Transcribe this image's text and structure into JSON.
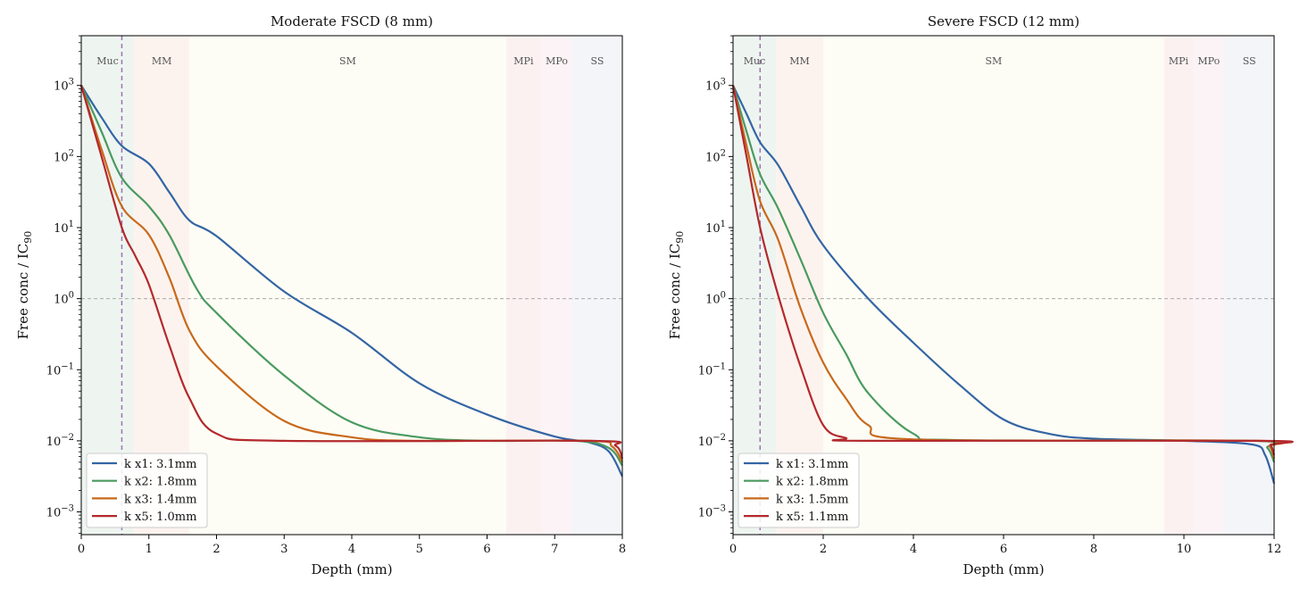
{
  "chart_data": [
    {
      "type": "line",
      "title": "Moderate FSCD (8 mm)",
      "xlabel": "Depth (mm)",
      "ylabel": "Free conc / IC",
      "ylabel_sub": "90",
      "yscale": "log",
      "xlim": [
        0,
        8
      ],
      "ylim_log10": [
        -3.32,
        3.7
      ],
      "xticks": [
        0,
        1,
        2,
        3,
        4,
        5,
        6,
        7,
        8
      ],
      "yticks_log10": [
        -3,
        -2,
        -1,
        0,
        1,
        2,
        3
      ],
      "threshold_y": 1,
      "marker_x": 0.6,
      "legend_position": "lower-left",
      "layers": [
        {
          "label": "Muc",
          "from": 0,
          "to": 0.78,
          "color": "#eef5f1"
        },
        {
          "label": "MM",
          "from": 0.78,
          "to": 1.6,
          "color": "#fdf3ee"
        },
        {
          "label": "SM",
          "from": 1.6,
          "to": 6.28,
          "color": "#fdfdf5"
        },
        {
          "label": "MPi",
          "from": 6.28,
          "to": 6.8,
          "color": "#fcf1f1"
        },
        {
          "label": "MPo",
          "from": 6.8,
          "to": 7.26,
          "color": "#fbf3f5"
        },
        {
          "label": "SS",
          "from": 7.26,
          "to": 8,
          "color": "#f3f5f9"
        }
      ],
      "series": [
        {
          "name": "k x1: 3.1mm",
          "color": "#3465a4",
          "x": [
            0,
            0.3,
            0.6,
            1.0,
            1.3,
            1.6,
            2,
            3,
            4,
            5,
            6,
            7,
            7.5,
            7.8,
            8
          ],
          "log10_y": [
            3,
            2.55,
            2.15,
            1.9,
            1.5,
            1.1,
            0.88,
            0.1,
            -0.48,
            -1.19,
            -1.63,
            -1.94,
            -2.02,
            -2.15,
            -2.5
          ]
        },
        {
          "name": "k x2: 1.8mm",
          "color": "#4a9a5f",
          "x": [
            0,
            0.3,
            0.6,
            1.0,
            1.3,
            1.7,
            2,
            3,
            4,
            5,
            6,
            7.3,
            7.8,
            8
          ],
          "log10_y": [
            3,
            2.35,
            1.7,
            1.3,
            0.9,
            0.15,
            -0.2,
            -1.08,
            -1.74,
            -1.95,
            -2,
            -2,
            -2.1,
            -2.35
          ]
        },
        {
          "name": "k x3: 1.4mm",
          "color": "#c8691c",
          "x": [
            0,
            0.3,
            0.6,
            1.0,
            1.3,
            1.6,
            2,
            3,
            4,
            5,
            7.5,
            7.85,
            8
          ],
          "log10_y": [
            3,
            2.1,
            1.3,
            0.9,
            0.3,
            -0.45,
            -0.95,
            -1.72,
            -1.95,
            -2,
            -2,
            -2.08,
            -2.3
          ]
        },
        {
          "name": "k x5: 1.0mm",
          "color": "#b3292c",
          "x": [
            0,
            0.3,
            0.6,
            0.8,
            1.0,
            1.3,
            1.6,
            2,
            3,
            7.5,
            7.9,
            8
          ],
          "log10_y": [
            3,
            2.0,
            1.0,
            0.6,
            0.2,
            -0.65,
            -1.4,
            -1.9,
            -2,
            -2,
            -2.07,
            -2.25
          ]
        }
      ]
    },
    {
      "type": "line",
      "title": "Severe FSCD (12 mm)",
      "xlabel": "Depth (mm)",
      "ylabel": "Free conc / IC",
      "ylabel_sub": "90",
      "yscale": "log",
      "xlim": [
        0,
        12
      ],
      "ylim_log10": [
        -3.32,
        3.7
      ],
      "xticks": [
        0,
        2,
        4,
        6,
        8,
        10,
        12
      ],
      "yticks_log10": [
        -3,
        -2,
        -1,
        0,
        1,
        2,
        3
      ],
      "threshold_y": 1,
      "marker_x": 0.6,
      "legend_position": "lower-left",
      "layers": [
        {
          "label": "Muc",
          "from": 0,
          "to": 0.95,
          "color": "#eef5f1"
        },
        {
          "label": "MM",
          "from": 0.95,
          "to": 2.0,
          "color": "#fdf3ee"
        },
        {
          "label": "SM",
          "from": 2.0,
          "to": 9.56,
          "color": "#fdfdf5"
        },
        {
          "label": "MPi",
          "from": 9.56,
          "to": 10.2,
          "color": "#fcf1f1"
        },
        {
          "label": "MPo",
          "from": 10.2,
          "to": 10.9,
          "color": "#fbf3f5"
        },
        {
          "label": "SS",
          "from": 10.9,
          "to": 12,
          "color": "#f3f5f9"
        }
      ],
      "series": [
        {
          "name": "k x1: 3.1mm",
          "color": "#3465a4",
          "x": [
            0,
            0.3,
            0.6,
            1.0,
            1.5,
            2,
            3,
            4,
            5,
            6,
            7,
            8,
            10,
            11.5,
            11.8,
            12
          ],
          "log10_y": [
            3,
            2.6,
            2.2,
            1.88,
            1.3,
            0.75,
            0,
            -0.62,
            -1.2,
            -1.7,
            -1.9,
            -1.97,
            -2,
            -2.05,
            -2.2,
            -2.6
          ]
        },
        {
          "name": "k x2: 1.8mm",
          "color": "#4a9a5f",
          "x": [
            0,
            0.3,
            0.6,
            1.0,
            1.5,
            2,
            2.5,
            3,
            4,
            5,
            11.5,
            11.85,
            12
          ],
          "log10_y": [
            3,
            2.35,
            1.75,
            1.27,
            0.55,
            -0.2,
            -0.77,
            -1.33,
            -1.9,
            -1.99,
            -2,
            -2.1,
            -2.3
          ]
        },
        {
          "name": "k x3: 1.5mm",
          "color": "#c8691c",
          "x": [
            0,
            0.3,
            0.6,
            1.0,
            1.5,
            2,
            2.5,
            3,
            4,
            11.6,
            11.9,
            12
          ],
          "log10_y": [
            3,
            2.15,
            1.37,
            0.83,
            -0.14,
            -0.9,
            -1.4,
            -1.78,
            -1.98,
            -2,
            -2.08,
            -2.25
          ]
        },
        {
          "name": "k x5: 1.1mm",
          "color": "#b3292c",
          "x": [
            0,
            0.3,
            0.6,
            1.0,
            1.5,
            2,
            2.5,
            3,
            11.7,
            11.92,
            12
          ],
          "log10_y": [
            3,
            2.0,
            1.0,
            0.05,
            -0.96,
            -1.78,
            -1.96,
            -2,
            -2,
            -2.06,
            -2.2
          ]
        }
      ]
    }
  ]
}
